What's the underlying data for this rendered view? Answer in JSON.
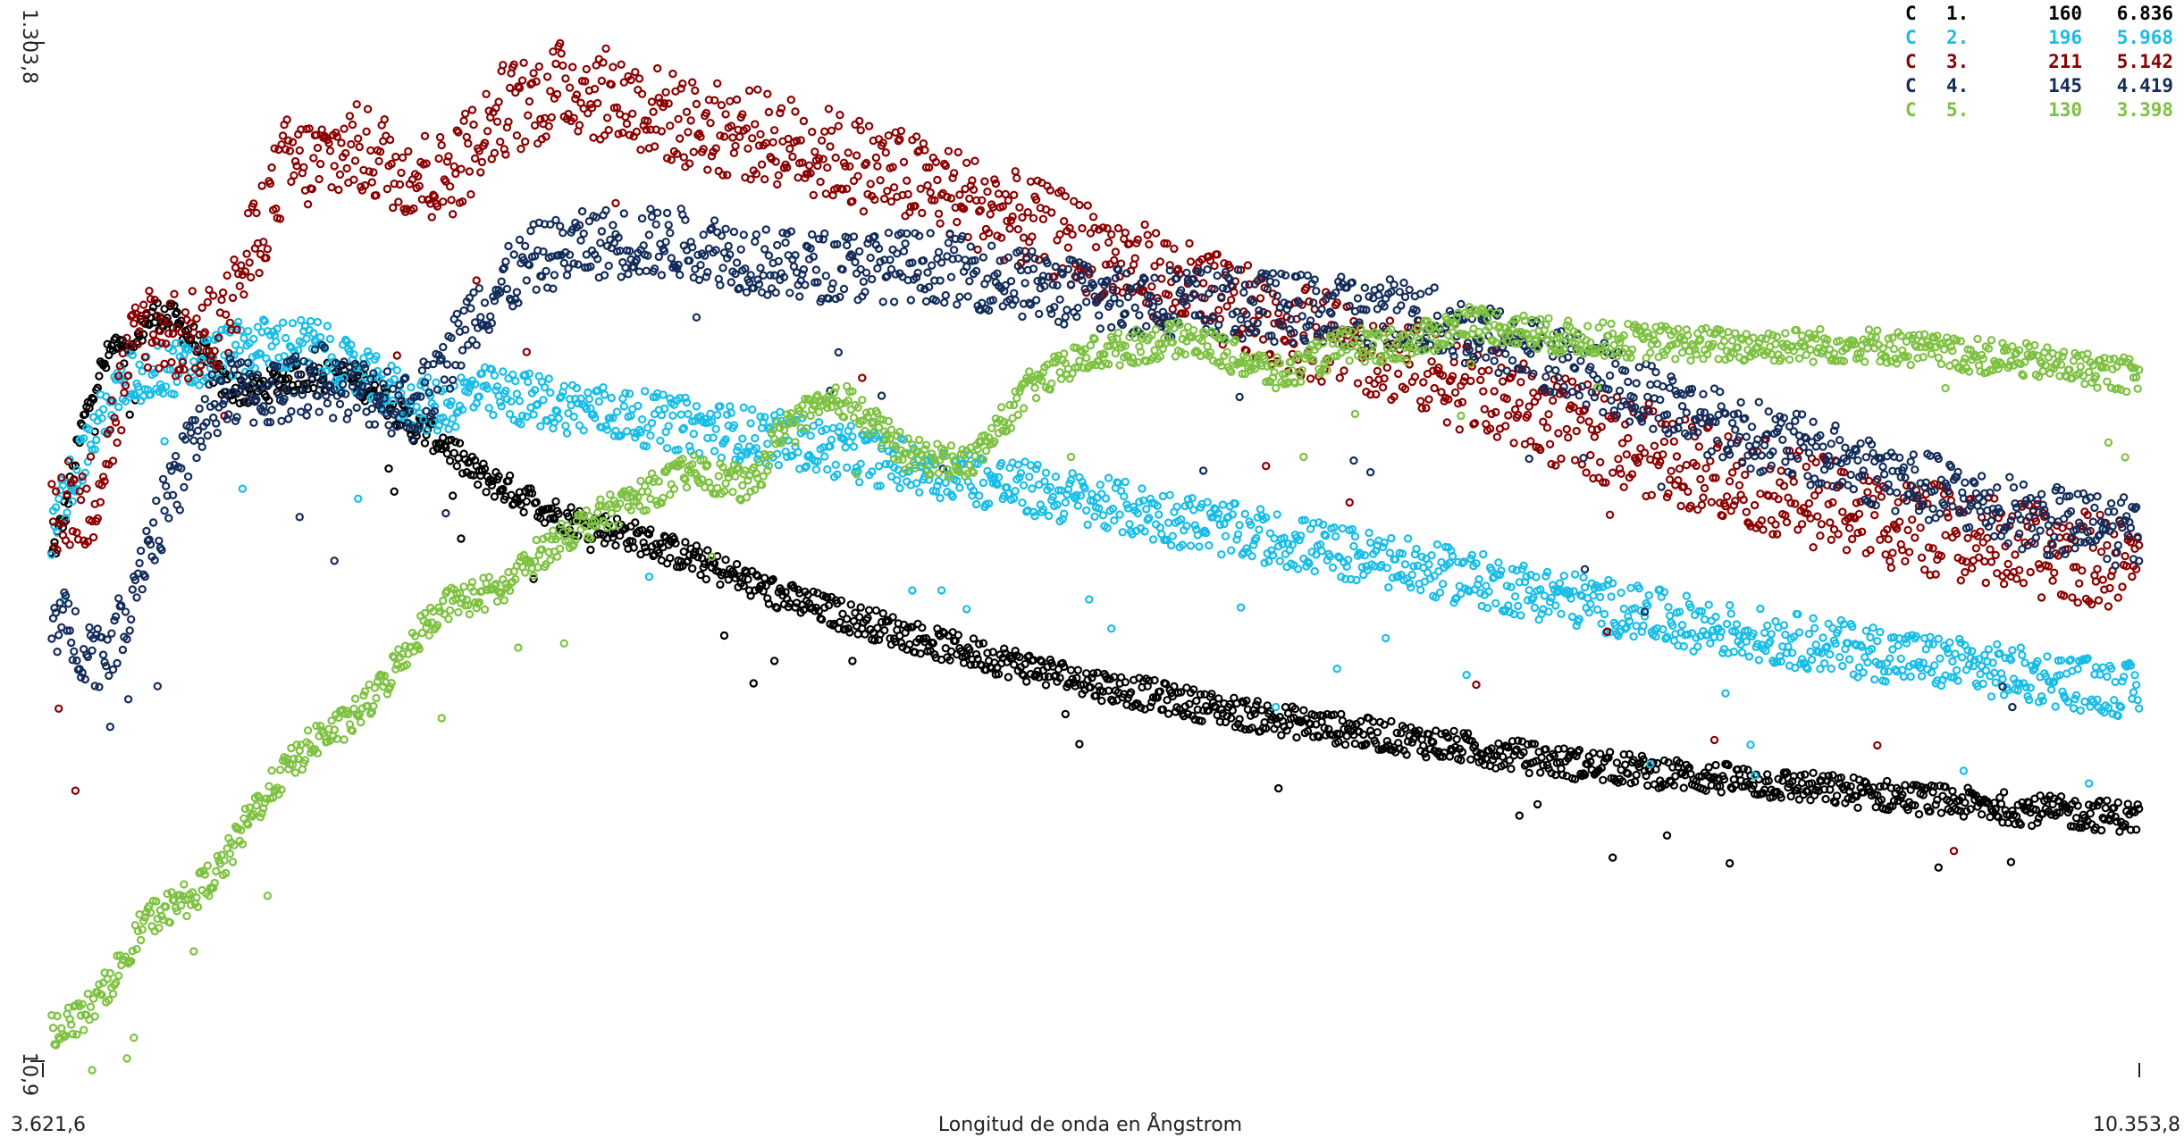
{
  "chart_data": {
    "type": "scatter",
    "title": "",
    "xlabel": "Longitud de onda en Ångstrom",
    "ylabel": "",
    "xlim": [
      3621.6,
      10353.8
    ],
    "ylim": [
      10.9,
      1303.8
    ],
    "x_tick_labels": {
      "min": "3.621,6",
      "max": "10.353,8"
    },
    "y_tick_labels": {
      "min": "10,9",
      "max": "1.303,8"
    },
    "grid": false,
    "legend_placement": "top-right",
    "legend": [
      {
        "c": "C",
        "idx": "1.",
        "n": "160",
        "v": "6.836",
        "color": "#000000"
      },
      {
        "c": "C",
        "idx": "2.",
        "n": "196",
        "v": "5.968",
        "color": "#19bde6"
      },
      {
        "c": "C",
        "idx": "3.",
        "n": "211",
        "v": "5.142",
        "color": "#8b0000"
      },
      {
        "c": "C",
        "idx": "4.",
        "n": "145",
        "v": "4.419",
        "color": "#132c5a"
      },
      {
        "c": "C",
        "idx": "5.",
        "n": "130",
        "v": "3.398",
        "color": "#7ec142"
      }
    ],
    "series": [
      {
        "color": "#000000",
        "x": [
          3650,
          3700,
          3750,
          3800,
          3850,
          3900,
          3950,
          4000,
          4050,
          4100,
          4150,
          4200,
          4300,
          4400,
          4500,
          4600,
          4700,
          4800,
          4900,
          5000,
          5100,
          5200,
          5300,
          5500,
          5700,
          6000,
          6500,
          7000,
          7500,
          8000,
          8500,
          9000,
          9500,
          10000,
          10353
        ],
        "y": [
          650,
          720,
          820,
          880,
          920,
          900,
          950,
          960,
          950,
          930,
          900,
          870,
          860,
          880,
          880,
          880,
          860,
          820,
          800,
          760,
          740,
          720,
          700,
          680,
          650,
          600,
          540,
          490,
          450,
          420,
          390,
          370,
          350,
          330,
          320
        ],
        "noise": 20
      },
      {
        "color": "#19bde6",
        "x": [
          3650,
          3700,
          3750,
          3800,
          3850,
          3900,
          3950,
          4000,
          4100,
          4200,
          4300,
          4400,
          4500,
          4600,
          4700,
          4800,
          4900,
          5000,
          5200,
          5500,
          6000,
          6500,
          7000,
          7500,
          8000,
          8500,
          9000,
          9500,
          10000,
          10353
        ],
        "y": [
          680,
          740,
          780,
          820,
          850,
          880,
          880,
          890,
          890,
          910,
          920,
          920,
          920,
          890,
          870,
          850,
          840,
          860,
          850,
          830,
          800,
          760,
          720,
          680,
          640,
          600,
          560,
          530,
          500,
          480
        ],
        "noise": 35
      },
      {
        "color": "#8b0000",
        "x": [
          3650,
          3700,
          3750,
          3800,
          3850,
          3900,
          3950,
          4000,
          4100,
          4200,
          4300,
          4400,
          4500,
          4600,
          4700,
          4800,
          4900,
          5000,
          5100,
          5200,
          5300,
          5500,
          5700,
          6000,
          6500,
          7000,
          7500,
          8000,
          8500,
          9000,
          9500,
          10000,
          10353
        ],
        "y": [
          700,
          730,
          700,
          750,
          820,
          900,
          950,
          940,
          930,
          940,
          1050,
          1150,
          1150,
          1170,
          1160,
          1140,
          1130,
          1170,
          1220,
          1230,
          1250,
          1230,
          1200,
          1180,
          1120,
          1040,
          960,
          900,
          820,
          760,
          700,
          660,
          640
        ],
        "noise": 60
      },
      {
        "color": "#132c5a",
        "x": [
          3650,
          3700,
          3750,
          3800,
          3850,
          3900,
          3950,
          4000,
          4050,
          4100,
          4200,
          4300,
          4400,
          4500,
          4600,
          4700,
          4800,
          4900,
          5000,
          5200,
          5400,
          5700,
          6000,
          6300,
          6500,
          7000,
          7500,
          8000,
          8500,
          9000,
          9500,
          10000,
          10353
        ],
        "y": [
          580,
          560,
          540,
          530,
          540,
          600,
          660,
          700,
          740,
          800,
          860,
          860,
          860,
          880,
          860,
          860,
          840,
          880,
          960,
          1030,
          1050,
          1050,
          1020,
          1020,
          1020,
          980,
          970,
          960,
          900,
          820,
          760,
          700,
          680
        ],
        "noise": 45
      },
      {
        "color": "#7ec142",
        "x": [
          3650,
          3700,
          3750,
          3800,
          3850,
          3900,
          3950,
          4000,
          4100,
          4200,
          4300,
          4400,
          4500,
          4600,
          4700,
          4800,
          4900,
          5000,
          5100,
          5200,
          5300,
          5500,
          5700,
          5900,
          6000,
          6200,
          6400,
          6600,
          6800,
          7000,
          7300,
          7600,
          7800,
          8000,
          8200,
          8500,
          9000,
          9500,
          10000,
          10353
        ],
        "y": [
          50,
          60,
          70,
          90,
          120,
          150,
          190,
          200,
          220,
          260,
          330,
          380,
          420,
          440,
          480,
          540,
          590,
          600,
          610,
          650,
          680,
          720,
          760,
          740,
          820,
          850,
          780,
          770,
          870,
          910,
          930,
          880,
          920,
          920,
          950,
          930,
          920,
          920,
          900,
          880
        ],
        "noise": 22
      }
    ]
  }
}
